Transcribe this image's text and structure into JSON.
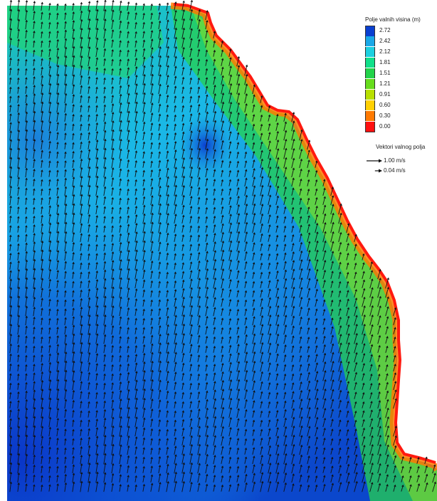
{
  "legend": {
    "title": "Polje valnih visina (m)",
    "entries": [
      {
        "value": "2.72",
        "color": "#0a3fd0"
      },
      {
        "value": "2.42",
        "color": "#1aa8e8"
      },
      {
        "value": "2.12",
        "color": "#1cd0e0"
      },
      {
        "value": "1.81",
        "color": "#10e08a"
      },
      {
        "value": "1.51",
        "color": "#22d34a"
      },
      {
        "value": "1.21",
        "color": "#66dc1c"
      },
      {
        "value": "0.91",
        "color": "#b8e000"
      },
      {
        "value": "0.60",
        "color": "#ffd000"
      },
      {
        "value": "0.30",
        "color": "#ff7a00"
      },
      {
        "value": "0.00",
        "color": "#ff1010"
      }
    ]
  },
  "vector_legend": {
    "title": "Vektori valnog polja",
    "entries": [
      {
        "label": "1.00 m/s",
        "magnitude": 1.0
      },
      {
        "label": "0.04 m/s",
        "magnitude": 0.04
      }
    ]
  },
  "colors": {
    "arrow": "#111111",
    "land": "#ffffff",
    "coast": "#ff2a10"
  }
}
